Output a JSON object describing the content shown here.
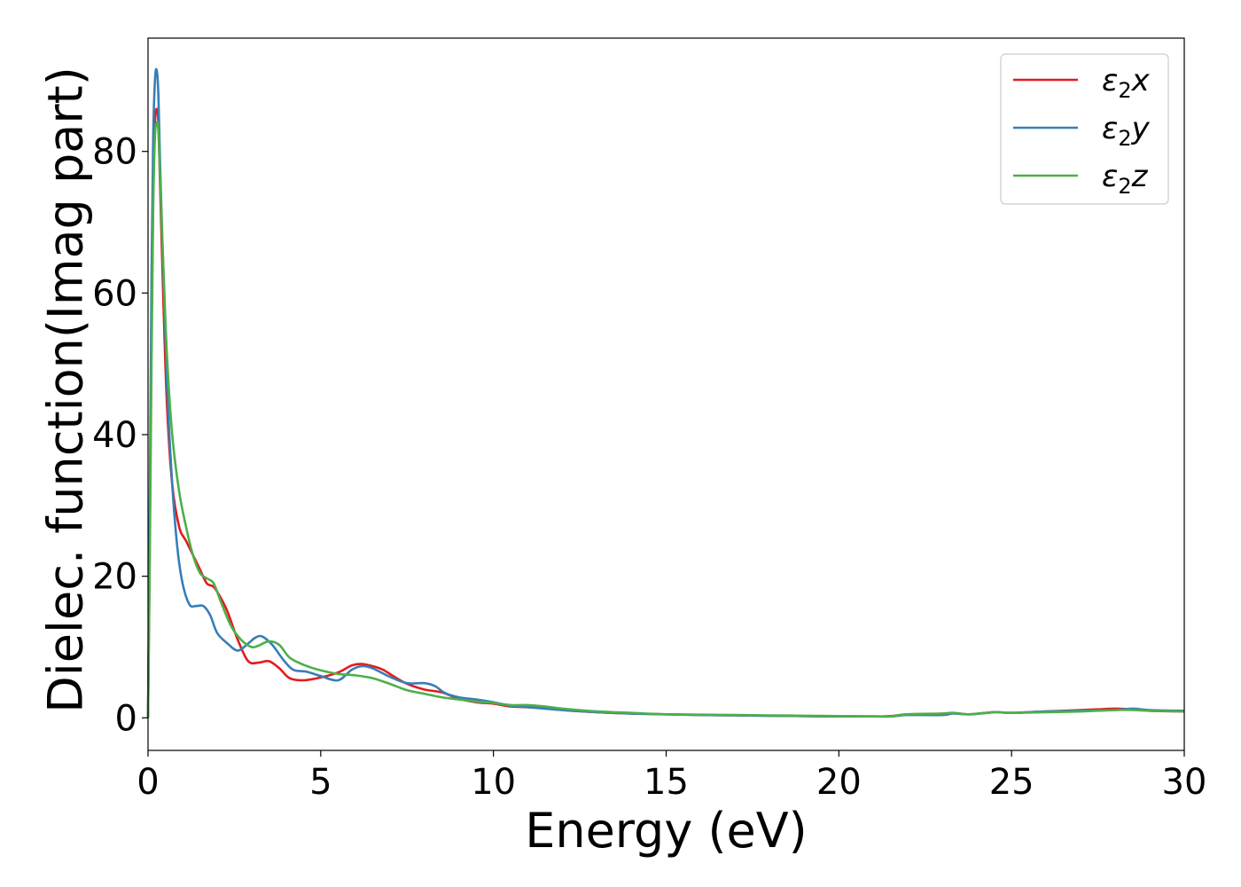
{
  "chart_data": {
    "type": "line",
    "xlabel": "Energy (eV)",
    "ylabel": "Dielec. function(Imag part)",
    "xlim": [
      0,
      30
    ],
    "ylim": [
      -4.6,
      96
    ],
    "xticks": [
      0,
      5,
      10,
      15,
      20,
      25,
      30
    ],
    "yticks": [
      0,
      20,
      40,
      60,
      80
    ],
    "xtick_labels": [
      "0",
      "5",
      "10",
      "15",
      "20",
      "25",
      "30"
    ],
    "ytick_labels": [
      "0",
      "20",
      "40",
      "60",
      "80"
    ],
    "grid": false,
    "legend_position": "top-right",
    "series": [
      {
        "name": "ε2x",
        "legend_label": {
          "base": "ε",
          "sub": "2",
          "suffix": "x"
        },
        "color": "#e41a1c",
        "x": [
          0,
          0.05,
          0.1,
          0.15,
          0.2,
          0.25,
          0.3,
          0.35,
          0.45,
          0.55,
          0.7,
          0.9,
          1.1,
          1.3,
          1.5,
          1.7,
          1.9,
          2.1,
          2.3,
          2.6,
          2.9,
          3.2,
          3.5,
          3.8,
          4.1,
          4.5,
          5.0,
          5.5,
          5.9,
          6.2,
          6.5,
          6.8,
          7.1,
          7.5,
          8.0,
          8.5,
          9.0,
          9.5,
          10.0,
          10.5,
          11.0,
          11.5,
          12.0,
          13.0,
          14.0,
          15.0,
          16.0,
          17.0,
          18.0,
          19.0,
          20.0,
          21.0,
          21.5,
          22.0,
          23.0,
          23.3,
          23.8,
          24.5,
          25.0,
          26.0,
          27.0,
          27.5,
          28.0,
          28.5,
          29.0,
          30.0
        ],
        "values": [
          0,
          25,
          55,
          75,
          84,
          86,
          84,
          75,
          58,
          44,
          33,
          27,
          25,
          23,
          21,
          19,
          18.5,
          17,
          15,
          11,
          8,
          7.8,
          8,
          7,
          5.6,
          5.3,
          5.7,
          6.4,
          7.4,
          7.6,
          7.3,
          6.8,
          5.9,
          4.8,
          4.0,
          3.6,
          2.7,
          2.2,
          2.0,
          1.6,
          1.5,
          1.4,
          1.1,
          0.8,
          0.6,
          0.5,
          0.4,
          0.35,
          0.3,
          0.25,
          0.2,
          0.2,
          0.25,
          0.5,
          0.6,
          0.7,
          0.5,
          0.8,
          0.7,
          0.9,
          1.1,
          1.2,
          1.3,
          1.2,
          1.0,
          0.9
        ]
      },
      {
        "name": "ε2y",
        "legend_label": {
          "base": "ε",
          "sub": "2",
          "suffix": "y"
        },
        "color": "#377eb8",
        "x": [
          0,
          0.05,
          0.1,
          0.15,
          0.2,
          0.25,
          0.3,
          0.35,
          0.45,
          0.55,
          0.7,
          0.85,
          1.0,
          1.2,
          1.4,
          1.6,
          1.8,
          2.0,
          2.3,
          2.6,
          2.9,
          3.1,
          3.3,
          3.6,
          3.9,
          4.2,
          4.6,
          5.0,
          5.5,
          5.9,
          6.2,
          6.5,
          7.0,
          7.5,
          8.0,
          8.3,
          8.6,
          9.0,
          9.5,
          10.0,
          10.5,
          11.0,
          11.5,
          12.0,
          13.0,
          14.0,
          15.0,
          16.0,
          17.0,
          18.0,
          19.0,
          20.0,
          21.0,
          21.5,
          22.0,
          23.0,
          23.3,
          23.8,
          24.5,
          25.0,
          26.0,
          27.0,
          28.0,
          28.5,
          29.0,
          30.0
        ],
        "values": [
          0,
          30,
          62,
          82,
          90,
          91.5,
          88,
          78,
          62,
          47,
          33,
          24,
          19,
          16,
          15.8,
          15.8,
          14.5,
          12,
          10.5,
          9.5,
          10.5,
          11.3,
          11.5,
          10.3,
          8.3,
          6.8,
          6.5,
          5.9,
          5.3,
          6.8,
          7.3,
          7.0,
          5.8,
          4.9,
          4.9,
          4.5,
          3.5,
          2.9,
          2.6,
          2.2,
          1.7,
          1.5,
          1.3,
          1.1,
          0.8,
          0.6,
          0.5,
          0.4,
          0.35,
          0.3,
          0.25,
          0.2,
          0.2,
          0.2,
          0.4,
          0.4,
          0.6,
          0.5,
          0.8,
          0.7,
          0.9,
          1.0,
          1.1,
          1.3,
          1.1,
          1.0
        ]
      },
      {
        "name": "ε2z",
        "legend_label": {
          "base": "ε",
          "sub": "2",
          "suffix": "z"
        },
        "color": "#4daf4a",
        "x": [
          0,
          0.05,
          0.1,
          0.15,
          0.2,
          0.25,
          0.3,
          0.35,
          0.45,
          0.55,
          0.7,
          0.9,
          1.1,
          1.3,
          1.5,
          1.7,
          1.9,
          2.1,
          2.4,
          2.7,
          3.0,
          3.2,
          3.5,
          3.8,
          4.1,
          4.5,
          5.0,
          5.5,
          6.0,
          6.5,
          7.0,
          7.5,
          8.0,
          8.5,
          9.0,
          9.5,
          10.0,
          10.5,
          11.0,
          11.5,
          12.0,
          13.0,
          14.0,
          15.0,
          16.0,
          17.0,
          18.0,
          19.0,
          20.0,
          21.0,
          21.5,
          22.0,
          23.0,
          23.3,
          23.8,
          24.5,
          25.0,
          26.0,
          27.0,
          28.0,
          28.5,
          29.0,
          30.0
        ],
        "values": [
          0,
          22,
          50,
          72,
          82,
          84,
          83,
          76,
          63,
          51,
          40,
          32,
          27,
          23,
          20.5,
          19.7,
          19,
          16.5,
          13,
          11,
          10,
          10.2,
          10.8,
          10.3,
          8.5,
          7.5,
          6.7,
          6.2,
          6.0,
          5.6,
          4.8,
          3.9,
          3.4,
          2.9,
          2.6,
          2.3,
          2.1,
          1.8,
          1.8,
          1.6,
          1.3,
          0.9,
          0.7,
          0.5,
          0.45,
          0.4,
          0.35,
          0.3,
          0.25,
          0.2,
          0.2,
          0.5,
          0.6,
          0.7,
          0.5,
          0.8,
          0.7,
          0.8,
          0.9,
          1.1,
          1.1,
          1.0,
          0.9
        ]
      }
    ]
  }
}
